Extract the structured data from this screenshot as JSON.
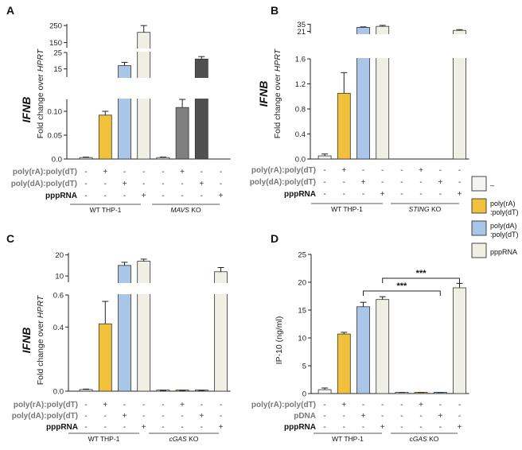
{
  "figure": {
    "colors": {
      "none": "#f4f4f0",
      "ra": "#f2c13c",
      "da": "#a9c6e8",
      "ppp": "#efefe6",
      "mavs_ra": "#808080",
      "mavs_da": "#4f4f4f"
    },
    "legend": [
      {
        "label": "–",
        "color_key": "none"
      },
      {
        "label": "poly(rA)\n:poly(dT)",
        "color_key": "ra"
      },
      {
        "label": "poly(dA)\n:poly(dT)",
        "color_key": "da"
      },
      {
        "label": "pppRNA",
        "color_key": "ppp"
      }
    ]
  },
  "chart_data": [
    {
      "panel": "A",
      "type": "bar",
      "title": "",
      "ylabel_main": "IFNB",
      "ylabel_sub": "Fold change over HPRT",
      "categories": [
        "WT -",
        "WT poly(rA)",
        "WT poly(dA)",
        "WT pppRNA",
        "MAVS KO -",
        "MAVS KO poly(rA)",
        "MAVS KO poly(dA)",
        "MAVS KO pppRNA"
      ],
      "values": [
        0.003,
        0.092,
        17,
        210,
        0.003,
        0.108,
        21,
        0
      ],
      "errors": [
        0.001,
        0.008,
        2,
        40,
        0.001,
        0.02,
        1.5,
        0
      ],
      "color_keys": [
        "none",
        "ra",
        "da",
        "ppp",
        "none",
        "mavs_ra",
        "mavs_da",
        "ppp"
      ],
      "segments": [
        {
          "ylim": [
            0,
            0.125
          ],
          "ticks": [
            "0.0",
            "0.05",
            "0.10"
          ],
          "tick_values": [
            0,
            0.05,
            0.1
          ]
        },
        {
          "ylim": [
            10,
            25
          ],
          "ticks": [
            "15",
            "25"
          ],
          "tick_values": [
            15,
            25
          ]
        },
        {
          "ylim": [
            120,
            260
          ],
          "ticks": [
            "150",
            "250"
          ],
          "tick_values": [
            150,
            250
          ]
        }
      ],
      "treatment_rows": [
        {
          "label": "poly(rA):poly(dT)",
          "cells": [
            "-",
            "+",
            "-",
            "-",
            "-",
            "+",
            "-",
            "-"
          ]
        },
        {
          "label": "poly(dA):poly(dT)",
          "cells": [
            "-",
            "-",
            "+",
            "-",
            "-",
            "-",
            "+",
            "-"
          ]
        },
        {
          "label": "pppRNA",
          "cells": [
            "-",
            "-",
            "-",
            "+",
            "-",
            "-",
            "-",
            "+"
          ]
        }
      ],
      "groups": [
        {
          "prefix": "WT THP-1",
          "italic": ""
        },
        {
          "prefix": "",
          "italic": "MAVS",
          "suffix": " KO"
        }
      ]
    },
    {
      "panel": "B",
      "type": "bar",
      "title": "",
      "ylabel_main": "IFNB",
      "ylabel_sub": "Fold change over HPRT",
      "categories": [
        "WT -",
        "WT poly(rA)",
        "WT poly(dA)",
        "WT pppRNA",
        "STING KO -",
        "STING KO poly(rA)",
        "STING KO poly(dA)",
        "STING KO pppRNA"
      ],
      "values": [
        0.05,
        1.05,
        29,
        31,
        0,
        0,
        0,
        23
      ],
      "errors": [
        0.03,
        0.33,
        1,
        2,
        0,
        0,
        0,
        1.5
      ],
      "color_keys": [
        "none",
        "ra",
        "da",
        "ppp",
        "none",
        "ra",
        "da",
        "ppp"
      ],
      "segments": [
        {
          "ylim": [
            0,
            1.6
          ],
          "ticks": [
            "0.0",
            "0.4",
            "0.8",
            "1.2",
            "1.6"
          ],
          "tick_values": [
            0,
            0.4,
            0.8,
            1.2,
            1.6
          ]
        },
        {
          "ylim": [
            17,
            36
          ],
          "ticks": [
            "21",
            "35"
          ],
          "tick_values": [
            21,
            35
          ]
        }
      ],
      "treatment_rows": [
        {
          "label": "poly(rA):poly(dT)",
          "cells": [
            "-",
            "+",
            "-",
            "-",
            "-",
            "+",
            "-",
            "-"
          ]
        },
        {
          "label": "poly(dA):poly(dT)",
          "cells": [
            "-",
            "-",
            "+",
            "-",
            "-",
            "-",
            "+",
            "-"
          ]
        },
        {
          "label": "pppRNA",
          "cells": [
            "-",
            "-",
            "-",
            "+",
            "-",
            "-",
            "-",
            "+"
          ]
        }
      ],
      "groups": [
        {
          "prefix": "WT THP-1",
          "italic": ""
        },
        {
          "prefix": "",
          "italic": "STING",
          "suffix": " KO"
        }
      ]
    },
    {
      "panel": "C",
      "type": "bar",
      "title": "",
      "ylabel_main": "IFNB",
      "ylabel_sub": "Fold change over HPRT",
      "categories": [
        "WT -",
        "WT poly(rA)",
        "WT poly(dA)",
        "WT pppRNA",
        "cGAS KO -",
        "cGAS KO poly(rA)",
        "cGAS KO poly(dA)",
        "cGAS KO pppRNA"
      ],
      "values": [
        0.01,
        0.42,
        15,
        17,
        0.003,
        0.003,
        0.003,
        12
      ],
      "errors": [
        0.003,
        0.14,
        1.5,
        1,
        0.001,
        0.001,
        0.001,
        2
      ],
      "color_keys": [
        "none",
        "ra",
        "da",
        "ppp",
        "none",
        "ra",
        "da",
        "ppp"
      ],
      "segments": [
        {
          "ylim": [
            0,
            0.6
          ],
          "ticks": [
            "0.0",
            "0.4",
            "0.6"
          ],
          "tick_values": [
            0,
            0.4,
            0.6
          ]
        },
        {
          "ylim": [
            7,
            21
          ],
          "ticks": [
            "10",
            "20"
          ],
          "tick_values": [
            10,
            20
          ]
        }
      ],
      "treatment_rows": [
        {
          "label": "poly(rA):poly(dT)",
          "cells": [
            "-",
            "+",
            "-",
            "-",
            "-",
            "+",
            "-",
            "-"
          ]
        },
        {
          "label": "poly(dA):poly(dT)",
          "cells": [
            "-",
            "-",
            "+",
            "-",
            "-",
            "-",
            "+",
            "-"
          ]
        },
        {
          "label": "pppRNA",
          "cells": [
            "-",
            "-",
            "-",
            "+",
            "-",
            "-",
            "-",
            "+"
          ]
        }
      ],
      "groups": [
        {
          "prefix": "WT THP-1",
          "italic": ""
        },
        {
          "prefix": "",
          "italic": "cGAS",
          "suffix": " KO"
        }
      ]
    },
    {
      "panel": "D",
      "type": "bar",
      "title": "",
      "ylabel_main": "",
      "ylabel_sub": "IP-10 (ng/ml)",
      "categories": [
        "WT -",
        "WT poly(rA)",
        "WT pDNA",
        "WT pppRNA",
        "cGAS KO -",
        "cGAS KO poly(rA)",
        "cGAS KO pDNA",
        "cGAS KO pppRNA"
      ],
      "values": [
        0.7,
        10.7,
        15.6,
        16.9,
        0.1,
        0.1,
        0.1,
        19.0
      ],
      "errors": [
        0.3,
        0.3,
        0.8,
        0.5,
        0.1,
        0.1,
        0.1,
        0.8
      ],
      "color_keys": [
        "none",
        "ra",
        "da",
        "ppp",
        "none",
        "ra",
        "da",
        "ppp"
      ],
      "segments": [
        {
          "ylim": [
            0,
            25
          ],
          "ticks": [
            "0",
            "5",
            "10",
            "15",
            "20",
            "25"
          ],
          "tick_values": [
            0,
            5,
            10,
            15,
            20,
            25
          ]
        }
      ],
      "significance": [
        {
          "from": 2,
          "to": 6,
          "label": "***"
        },
        {
          "from": 3,
          "to": 7,
          "label": "***"
        }
      ],
      "treatment_rows": [
        {
          "label": "poly(rA):poly(dT)",
          "cells": [
            "-",
            "+",
            "-",
            "-",
            "-",
            "+",
            "-",
            "-"
          ]
        },
        {
          "label": "pDNA",
          "cells": [
            "-",
            "-",
            "+",
            "-",
            "-",
            "-",
            "+",
            "-"
          ]
        },
        {
          "label": "pppRNA",
          "cells": [
            "-",
            "-",
            "-",
            "+",
            "-",
            "-",
            "-",
            "+"
          ]
        }
      ],
      "groups": [
        {
          "prefix": "WT THP-1",
          "italic": ""
        },
        {
          "prefix": "c",
          "italic": "GAS",
          "suffix": " KO"
        }
      ]
    }
  ]
}
